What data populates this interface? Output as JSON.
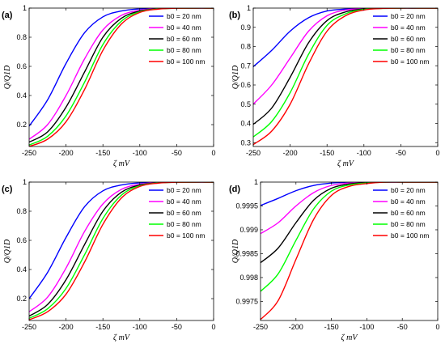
{
  "chart_data": [
    {
      "type": "line",
      "panel_label": "(a)",
      "xlabel": "ζ mV",
      "ylabel": "Q/Q1D",
      "xlim": [
        -250,
        0
      ],
      "ylim": [
        0.05,
        1.0
      ],
      "xticks": [
        -250,
        -200,
        -150,
        -100,
        -50,
        0
      ],
      "yticks": [
        0.2,
        0.4,
        0.6,
        0.8,
        1
      ],
      "ytick_labels": [
        "0.2",
        "0.4",
        "0.6",
        "0.8",
        "1"
      ],
      "legend_position": "top-right",
      "grid": false,
      "x": [
        -250,
        -225,
        -200,
        -175,
        -150,
        -125,
        -100,
        -75,
        -50,
        -25,
        0
      ],
      "series": [
        {
          "name": "b0 = 20 nm",
          "color": "#0000ff",
          "values": [
            0.19,
            0.37,
            0.62,
            0.83,
            0.94,
            0.98,
            0.995,
            0.999,
            1.0,
            1.0,
            1.0
          ]
        },
        {
          "name": "b0 = 40 nm",
          "color": "#ff00ff",
          "values": [
            0.1,
            0.2,
            0.4,
            0.65,
            0.85,
            0.95,
            0.985,
            0.997,
            1.0,
            1.0,
            1.0
          ]
        },
        {
          "name": "b0 = 60 nm",
          "color": "#000000",
          "values": [
            0.08,
            0.15,
            0.32,
            0.56,
            0.8,
            0.93,
            0.98,
            0.995,
            0.999,
            1.0,
            1.0
          ]
        },
        {
          "name": "b0 = 80 nm",
          "color": "#00ff00",
          "values": [
            0.06,
            0.12,
            0.26,
            0.49,
            0.75,
            0.91,
            0.975,
            0.994,
            0.999,
            1.0,
            1.0
          ]
        },
        {
          "name": "b0 = 100 nm",
          "color": "#ff0000",
          "values": [
            0.05,
            0.1,
            0.22,
            0.44,
            0.71,
            0.89,
            0.97,
            0.993,
            0.999,
            1.0,
            1.0
          ]
        }
      ]
    },
    {
      "type": "line",
      "panel_label": "(b)",
      "xlabel": "ζ mV",
      "ylabel": "Q/Q1D",
      "xlim": [
        -250,
        0
      ],
      "ylim": [
        0.28,
        1.0
      ],
      "xticks": [
        -250,
        -200,
        -150,
        -100,
        -50,
        0
      ],
      "yticks": [
        0.3,
        0.4,
        0.5,
        0.6,
        0.7,
        0.8,
        0.9,
        1
      ],
      "ytick_labels": [
        "0.3",
        "0.4",
        "0.5",
        "0.6",
        "0.7",
        "0.8",
        "0.9",
        "1"
      ],
      "legend_position": "top-right",
      "grid": false,
      "x": [
        -250,
        -225,
        -200,
        -175,
        -150,
        -125,
        -100,
        -75,
        -50,
        -25,
        0
      ],
      "series": [
        {
          "name": "b0 = 20 nm",
          "color": "#0000ff",
          "values": [
            0.695,
            0.78,
            0.88,
            0.95,
            0.985,
            0.995,
            0.999,
            1.0,
            1.0,
            1.0,
            1.0
          ]
        },
        {
          "name": "b0 = 40 nm",
          "color": "#ff00ff",
          "values": [
            0.5,
            0.6,
            0.74,
            0.88,
            0.96,
            0.99,
            0.997,
            0.999,
            1.0,
            1.0,
            1.0
          ]
        },
        {
          "name": "b0 = 60 nm",
          "color": "#000000",
          "values": [
            0.395,
            0.48,
            0.64,
            0.82,
            0.935,
            0.98,
            0.995,
            0.999,
            1.0,
            1.0,
            1.0
          ]
        },
        {
          "name": "b0 = 80 nm",
          "color": "#00ff00",
          "values": [
            0.33,
            0.41,
            0.56,
            0.76,
            0.91,
            0.97,
            0.993,
            0.998,
            1.0,
            1.0,
            1.0
          ]
        },
        {
          "name": "b0 = 100 nm",
          "color": "#ff0000",
          "values": [
            0.29,
            0.36,
            0.5,
            0.71,
            0.88,
            0.96,
            0.99,
            0.998,
            1.0,
            1.0,
            1.0
          ]
        }
      ]
    },
    {
      "type": "line",
      "panel_label": "(c)",
      "xlabel": "ζ mV",
      "ylabel": "Q/Q1D",
      "xlim": [
        -250,
        0
      ],
      "ylim": [
        0.05,
        1.0
      ],
      "xticks": [
        -250,
        -200,
        -150,
        -100,
        -50,
        0
      ],
      "yticks": [
        0.2,
        0.4,
        0.6,
        0.8,
        1
      ],
      "ytick_labels": [
        "0.2",
        "0.4",
        "0.6",
        "0.8",
        "1"
      ],
      "legend_position": "top-right",
      "grid": false,
      "x": [
        -250,
        -225,
        -200,
        -175,
        -150,
        -125,
        -100,
        -75,
        -50,
        -25,
        0
      ],
      "series": [
        {
          "name": "b0 = 20 nm",
          "color": "#0000ff",
          "values": [
            0.2,
            0.38,
            0.62,
            0.83,
            0.94,
            0.98,
            0.995,
            0.999,
            1.0,
            1.0,
            1.0
          ]
        },
        {
          "name": "b0 = 40 nm",
          "color": "#ff00ff",
          "values": [
            0.11,
            0.21,
            0.41,
            0.66,
            0.85,
            0.95,
            0.985,
            0.997,
            1.0,
            1.0,
            1.0
          ]
        },
        {
          "name": "b0 = 60 nm",
          "color": "#000000",
          "values": [
            0.08,
            0.16,
            0.33,
            0.57,
            0.8,
            0.93,
            0.98,
            0.995,
            0.999,
            1.0,
            1.0
          ]
        },
        {
          "name": "b0 = 80 nm",
          "color": "#00ff00",
          "values": [
            0.065,
            0.13,
            0.27,
            0.5,
            0.75,
            0.91,
            0.975,
            0.994,
            0.999,
            1.0,
            1.0
          ]
        },
        {
          "name": "b0 = 100 nm",
          "color": "#ff0000",
          "values": [
            0.055,
            0.11,
            0.23,
            0.45,
            0.71,
            0.89,
            0.97,
            0.993,
            0.999,
            1.0,
            1.0
          ]
        }
      ]
    },
    {
      "type": "line",
      "panel_label": "(d)",
      "xlabel": "ζ mV",
      "ylabel": "Q/Q1D",
      "xlim": [
        -250,
        0
      ],
      "ylim": [
        0.9971,
        1.0
      ],
      "xticks": [
        -250,
        -200,
        -150,
        -100,
        -50,
        0
      ],
      "yticks": [
        0.9975,
        0.998,
        0.9985,
        0.999,
        0.9995,
        1
      ],
      "ytick_labels": [
        "0.9975",
        "0.998",
        "0.9985",
        "0.999",
        "0.9995",
        "1"
      ],
      "legend_position": "top-right",
      "grid": false,
      "x": [
        -250,
        -225,
        -200,
        -175,
        -150,
        -125,
        -100,
        -75,
        -50,
        -25,
        0
      ],
      "series": [
        {
          "name": "b0 = 20 nm",
          "color": "#0000ff",
          "values": [
            0.99951,
            0.99966,
            0.99982,
            0.99993,
            0.99998,
            1.0,
            1.0,
            1.0,
            1.0,
            1.0,
            1.0
          ]
        },
        {
          "name": "b0 = 40 nm",
          "color": "#ff00ff",
          "values": [
            0.99892,
            0.99915,
            0.9995,
            0.99978,
            0.99993,
            0.99998,
            1.0,
            1.0,
            1.0,
            1.0,
            1.0
          ]
        },
        {
          "name": "b0 = 60 nm",
          "color": "#000000",
          "values": [
            0.99831,
            0.99862,
            0.99915,
            0.99962,
            0.99987,
            0.99996,
            0.99999,
            1.0,
            1.0,
            1.0,
            1.0
          ]
        },
        {
          "name": "b0 = 80 nm",
          "color": "#00ff00",
          "values": [
            0.99771,
            0.99808,
            0.99878,
            0.99944,
            0.99981,
            0.99994,
            0.99998,
            1.0,
            1.0,
            1.0,
            1.0
          ]
        },
        {
          "name": "b0 = 100 nm",
          "color": "#ff0000",
          "values": [
            0.99712,
            0.99752,
            0.99838,
            0.99922,
            0.99972,
            0.99991,
            0.99997,
            1.0,
            1.0,
            1.0,
            1.0
          ]
        }
      ]
    }
  ]
}
